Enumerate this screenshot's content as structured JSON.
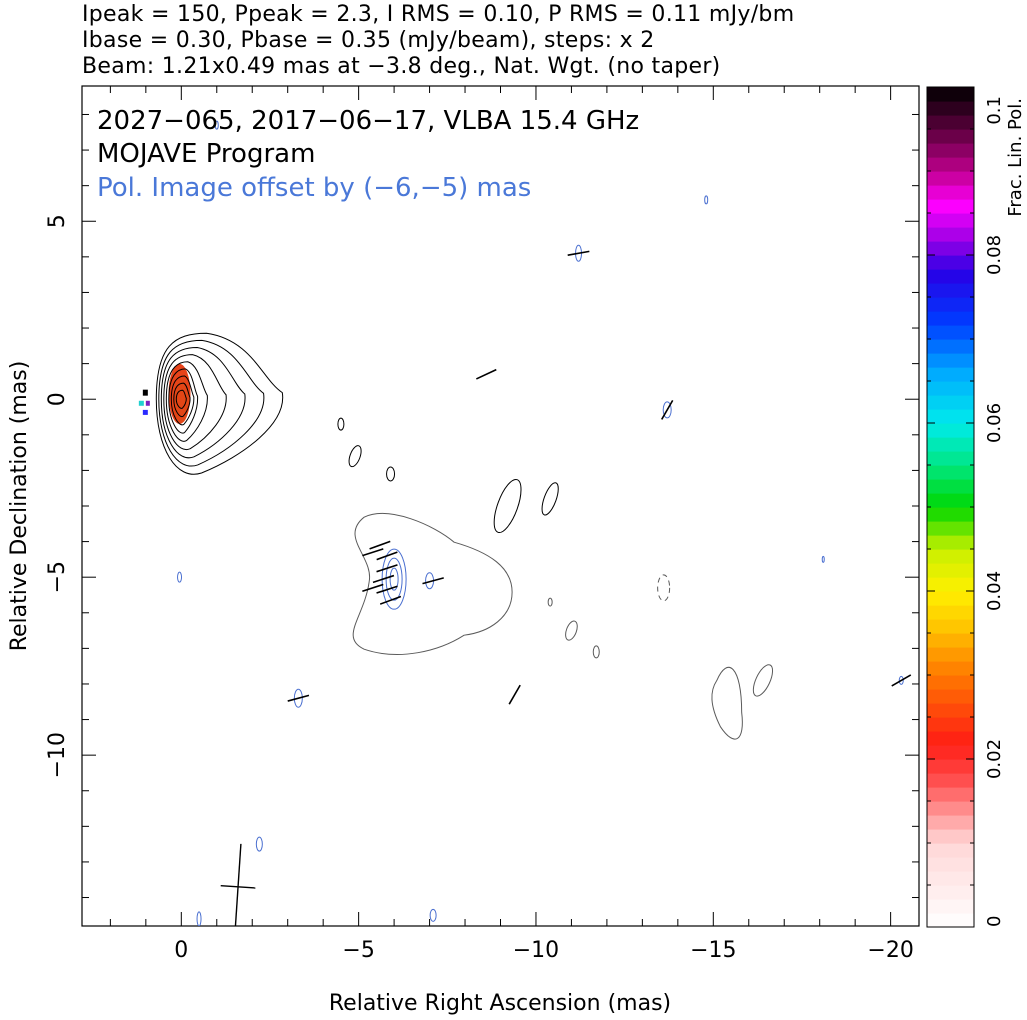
{
  "header": {
    "line1": "Ipeak = 150, Ppeak = 2.3, I RMS = 0.10, P RMS = 0.11 mJy/bm",
    "line2": "Ibase = 0.30, Pbase = 0.35 (mJy/beam), steps: x 2",
    "line3": "Beam: 1.21x0.49 mas at −3.8 deg., Nat. Wgt. (no taper)"
  },
  "colors": {
    "axis": "#000000",
    "total_intensity_contour": "#000000",
    "offset_image_contour": "#5a5a5a",
    "pol_contour": "#4a6fd0",
    "pol_annotation": "#4a78d8",
    "fpol_core": "#e8431a"
  },
  "chart_data": {
    "type": "contour map",
    "annotations": [
      "2027−065, 2017−06−17, VLBA 15.4 GHz",
      "MOJAVE Program",
      "Pol. Image offset by (−6,−5) mas"
    ],
    "xlabel": "Relative Right Ascension (mas)",
    "ylabel": "Relative Declination (mas)",
    "xlim": [
      2.8,
      -20.8
    ],
    "ylim": [
      -14.8,
      8.8
    ],
    "xticks": [
      0,
      -5,
      -10,
      -15,
      -20
    ],
    "xtick_labels": [
      "0",
      "−5",
      "−10",
      "−15",
      "−20"
    ],
    "yticks": [
      5,
      0,
      -5,
      -10
    ],
    "ytick_labels": [
      "5",
      "0",
      "−5",
      "−10"
    ],
    "colorbar": {
      "label": "Frac. Lin. Pol.",
      "range": [
        0,
        0.1
      ],
      "ticks": [
        0,
        0.02,
        0.04,
        0.06,
        0.08,
        0.1
      ],
      "tick_labels": [
        "0",
        "0.02",
        "0.04",
        "0.06",
        "0.08",
        "0.1"
      ]
    },
    "core": {
      "x": 0.0,
      "y": 0.0,
      "n_contours": 9
    },
    "offset_pol_center": {
      "x": -6.0,
      "y": -5.0
    },
    "beam": {
      "major_mas": 1.21,
      "minor_mas": 0.49,
      "pa_deg": -3.8,
      "x": -1.6,
      "y": -13.7
    },
    "evpa_vectors": [
      {
        "x": -5.6,
        "y": -4.1,
        "angle": 20
      },
      {
        "x": -5.8,
        "y": -4.4,
        "angle": 20
      },
      {
        "x": -5.8,
        "y": -4.75,
        "angle": 18
      },
      {
        "x": -5.7,
        "y": -5.05,
        "angle": 18
      },
      {
        "x": -5.8,
        "y": -5.35,
        "angle": 18
      },
      {
        "x": -5.9,
        "y": -5.65,
        "angle": 20
      },
      {
        "x": -5.4,
        "y": -4.3,
        "angle": 18
      },
      {
        "x": -5.4,
        "y": -5.3,
        "angle": 18
      },
      {
        "x": -7.1,
        "y": -5.1,
        "angle": 15
      },
      {
        "x": -11.2,
        "y": 4.1,
        "angle": 10
      },
      {
        "x": -8.6,
        "y": 0.7,
        "angle": 25
      },
      {
        "x": -13.7,
        "y": -0.3,
        "angle": 60
      },
      {
        "x": -3.3,
        "y": -8.4,
        "angle": 15
      },
      {
        "x": -20.3,
        "y": -7.9,
        "angle": 30
      },
      {
        "x": -9.4,
        "y": -8.3,
        "angle": 60
      }
    ]
  }
}
